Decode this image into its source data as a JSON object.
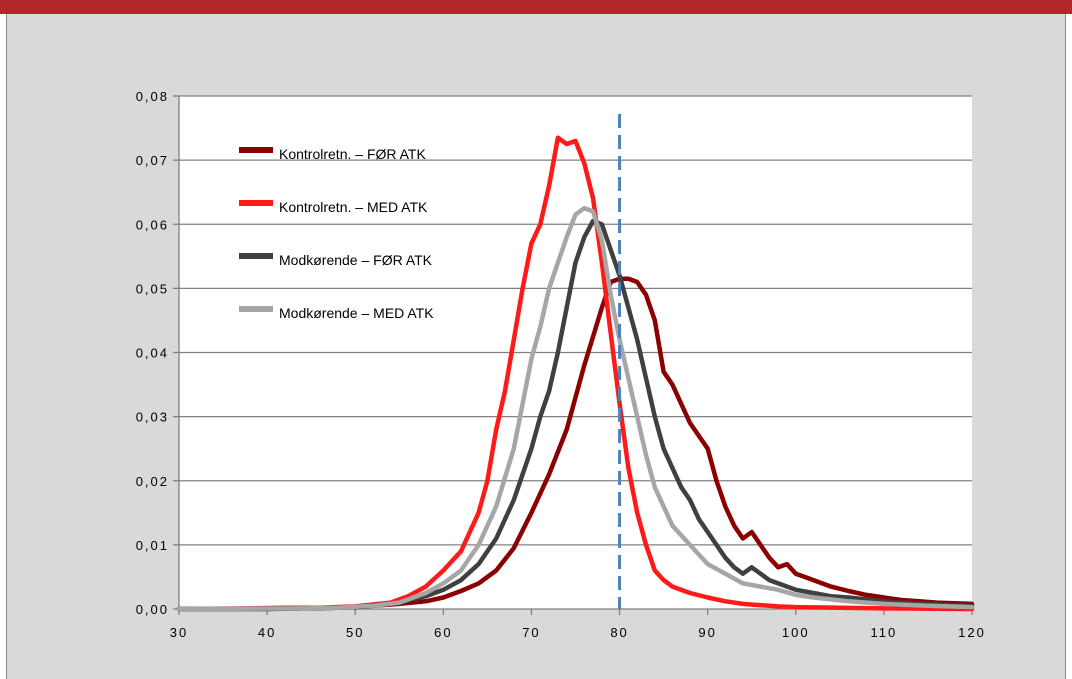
{
  "chart_data": {
    "type": "line",
    "title": "",
    "xlabel": "",
    "ylabel": "",
    "xlim": [
      30,
      120
    ],
    "ylim": [
      0,
      0.08
    ],
    "x_ticks": [
      "30",
      "40",
      "50",
      "60",
      "70",
      "80",
      "90",
      "100",
      "110",
      "120"
    ],
    "y_ticks": [
      "0,00",
      "0,01",
      "0,02",
      "0,03",
      "0,04",
      "0,05",
      "0,06",
      "0,07",
      "0,08"
    ],
    "grid": "horizontal",
    "legend_position": "top-left inside plot",
    "reference_line": {
      "x": 80,
      "style": "dashed",
      "color": "#4f81bd"
    },
    "series": [
      {
        "name": "Kontrolretn. – FØR ATK",
        "color": "#8b0000",
        "points": [
          [
            30,
            0
          ],
          [
            40,
            0
          ],
          [
            50,
            0.0003
          ],
          [
            55,
            0.0008
          ],
          [
            58,
            0.0012
          ],
          [
            60,
            0.0018
          ],
          [
            62,
            0.0028
          ],
          [
            64,
            0.004
          ],
          [
            66,
            0.006
          ],
          [
            68,
            0.0095
          ],
          [
            70,
            0.015
          ],
          [
            72,
            0.021
          ],
          [
            74,
            0.028
          ],
          [
            76,
            0.038
          ],
          [
            78,
            0.047
          ],
          [
            79,
            0.051
          ],
          [
            80,
            0.0515
          ],
          [
            81,
            0.0515
          ],
          [
            82,
            0.051
          ],
          [
            83,
            0.049
          ],
          [
            84,
            0.045
          ],
          [
            85,
            0.037
          ],
          [
            86,
            0.035
          ],
          [
            87,
            0.032
          ],
          [
            88,
            0.029
          ],
          [
            89,
            0.027
          ],
          [
            90,
            0.025
          ],
          [
            91,
            0.02
          ],
          [
            92,
            0.016
          ],
          [
            93,
            0.013
          ],
          [
            94,
            0.011
          ],
          [
            95,
            0.012
          ],
          [
            96,
            0.01
          ],
          [
            97,
            0.008
          ],
          [
            98,
            0.0065
          ],
          [
            99,
            0.007
          ],
          [
            100,
            0.0055
          ],
          [
            101,
            0.005
          ],
          [
            102,
            0.0045
          ],
          [
            104,
            0.0035
          ],
          [
            106,
            0.0028
          ],
          [
            108,
            0.0022
          ],
          [
            110,
            0.0018
          ],
          [
            112,
            0.0014
          ],
          [
            114,
            0.0012
          ],
          [
            116,
            0.001
          ],
          [
            118,
            0.0009
          ],
          [
            120,
            0.0008
          ]
        ]
      },
      {
        "name": "Kontrolretn. – MED ATK",
        "color": "#ff1a1a",
        "points": [
          [
            30,
            0
          ],
          [
            38,
            0.0001
          ],
          [
            42,
            0.0002
          ],
          [
            46,
            0.0002
          ],
          [
            50,
            0.0004
          ],
          [
            54,
            0.001
          ],
          [
            56,
            0.002
          ],
          [
            58,
            0.0035
          ],
          [
            60,
            0.006
          ],
          [
            62,
            0.009
          ],
          [
            63,
            0.012
          ],
          [
            64,
            0.015
          ],
          [
            65,
            0.02
          ],
          [
            66,
            0.028
          ],
          [
            67,
            0.034
          ],
          [
            68,
            0.042
          ],
          [
            69,
            0.05
          ],
          [
            70,
            0.057
          ],
          [
            71,
            0.06
          ],
          [
            72,
            0.066
          ],
          [
            73,
            0.0735
          ],
          [
            74,
            0.0725
          ],
          [
            75,
            0.073
          ],
          [
            76,
            0.0695
          ],
          [
            77,
            0.064
          ],
          [
            78,
            0.054
          ],
          [
            79,
            0.043
          ],
          [
            80,
            0.032
          ],
          [
            81,
            0.022
          ],
          [
            82,
            0.015
          ],
          [
            83,
            0.01
          ],
          [
            84,
            0.006
          ],
          [
            85,
            0.0045
          ],
          [
            86,
            0.0035
          ],
          [
            88,
            0.0025
          ],
          [
            90,
            0.0018
          ],
          [
            92,
            0.0012
          ],
          [
            94,
            0.0008
          ],
          [
            96,
            0.0006
          ],
          [
            98,
            0.0004
          ],
          [
            100,
            0.0003
          ],
          [
            105,
            0.0002
          ],
          [
            110,
            0.0001
          ],
          [
            120,
            0
          ]
        ]
      },
      {
        "name": "Modkørende – FØR ATK",
        "color": "#404040",
        "points": [
          [
            30,
            0
          ],
          [
            46,
            0.0001
          ],
          [
            50,
            0.0003
          ],
          [
            55,
            0.001
          ],
          [
            58,
            0.002
          ],
          [
            60,
            0.003
          ],
          [
            62,
            0.0045
          ],
          [
            64,
            0.007
          ],
          [
            66,
            0.011
          ],
          [
            68,
            0.017
          ],
          [
            70,
            0.025
          ],
          [
            71,
            0.03
          ],
          [
            72,
            0.034
          ],
          [
            73,
            0.04
          ],
          [
            74,
            0.047
          ],
          [
            75,
            0.054
          ],
          [
            76,
            0.058
          ],
          [
            77,
            0.0605
          ],
          [
            78,
            0.06
          ],
          [
            79,
            0.056
          ],
          [
            80,
            0.052
          ],
          [
            81,
            0.047
          ],
          [
            82,
            0.042
          ],
          [
            83,
            0.036
          ],
          [
            84,
            0.03
          ],
          [
            85,
            0.025
          ],
          [
            86,
            0.022
          ],
          [
            87,
            0.019
          ],
          [
            88,
            0.017
          ],
          [
            89,
            0.014
          ],
          [
            90,
            0.012
          ],
          [
            91,
            0.01
          ],
          [
            92,
            0.008
          ],
          [
            93,
            0.0065
          ],
          [
            94,
            0.0055
          ],
          [
            95,
            0.0065
          ],
          [
            96,
            0.0055
          ],
          [
            97,
            0.0045
          ],
          [
            98,
            0.004
          ],
          [
            100,
            0.003
          ],
          [
            102,
            0.0025
          ],
          [
            104,
            0.002
          ],
          [
            106,
            0.0018
          ],
          [
            108,
            0.0015
          ],
          [
            110,
            0.0012
          ],
          [
            112,
            0.001
          ],
          [
            115,
            0.0008
          ],
          [
            118,
            0.0006
          ],
          [
            120,
            0.0005
          ]
        ]
      },
      {
        "name": "Modkørende – MED ATK",
        "color": "#a6a6a6",
        "points": [
          [
            30,
            0
          ],
          [
            44,
            0.0001
          ],
          [
            48,
            0.0002
          ],
          [
            52,
            0.0005
          ],
          [
            55,
            0.001
          ],
          [
            58,
            0.0025
          ],
          [
            60,
            0.004
          ],
          [
            62,
            0.006
          ],
          [
            64,
            0.01
          ],
          [
            66,
            0.016
          ],
          [
            68,
            0.025
          ],
          [
            69,
            0.032
          ],
          [
            70,
            0.039
          ],
          [
            71,
            0.044
          ],
          [
            72,
            0.05
          ],
          [
            73,
            0.054
          ],
          [
            74,
            0.058
          ],
          [
            75,
            0.0615
          ],
          [
            76,
            0.0625
          ],
          [
            77,
            0.062
          ],
          [
            78,
            0.0575
          ],
          [
            79,
            0.049
          ],
          [
            80,
            0.042
          ],
          [
            81,
            0.036
          ],
          [
            82,
            0.03
          ],
          [
            83,
            0.024
          ],
          [
            84,
            0.019
          ],
          [
            85,
            0.016
          ],
          [
            86,
            0.013
          ],
          [
            88,
            0.01
          ],
          [
            90,
            0.007
          ],
          [
            92,
            0.0055
          ],
          [
            94,
            0.004
          ],
          [
            96,
            0.0035
          ],
          [
            98,
            0.003
          ],
          [
            100,
            0.0022
          ],
          [
            102,
            0.0018
          ],
          [
            104,
            0.0015
          ],
          [
            106,
            0.0012
          ],
          [
            108,
            0.001
          ],
          [
            110,
            0.0008
          ],
          [
            115,
            0.0005
          ],
          [
            120,
            0.0003
          ]
        ]
      }
    ]
  }
}
